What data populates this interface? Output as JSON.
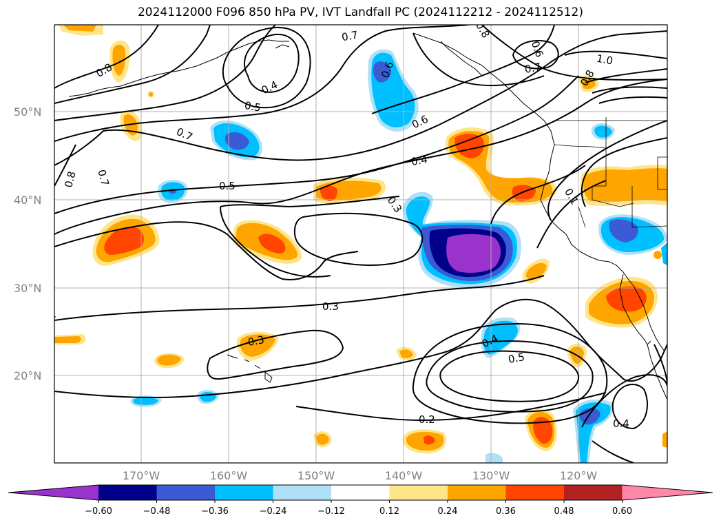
{
  "title": "2024112000 F096 850 hPa PV, IVT Landfall PC (2024112212 - 2024112512)",
  "lat_labels": [
    "50°N",
    "40°N",
    "30°N",
    "20°N"
  ],
  "lon_labels": [
    "170°W",
    "160°W",
    "150°W",
    "140°W",
    "130°W",
    "120°W"
  ],
  "contour_labels": [
    "0.8",
    "0.7",
    "0.4",
    "0.5",
    "0.6",
    "0.8",
    "0.6",
    "0.7",
    "1.0",
    "0.8",
    "0.7",
    "0.7",
    "0.8",
    "0.5",
    "0.4",
    "0.6",
    "0.3",
    "0.3",
    "0.3",
    "0.4",
    "0.5",
    "0.2",
    "0.4",
    "0.1"
  ],
  "colorbar": {
    "ticks": [
      "−0.60",
      "−0.48",
      "−0.36",
      "−0.24",
      "−0.12",
      "0.12",
      "0.24",
      "0.36",
      "0.48",
      "0.60"
    ],
    "colors": [
      "#9933cc",
      "#00008b",
      "#3a5ad6",
      "#00bfff",
      "#aee0f7",
      "#ffffff",
      "#ffe58a",
      "#ffa500",
      "#ff4500",
      "#b22222",
      "#ff88aa"
    ]
  },
  "fill_colors": {
    "neg_light": "#aee0f7",
    "neg_mid": "#00bfff",
    "neg_strong": "#3a5ad6",
    "neg_darker": "#00008b",
    "neg_darkest": "#9933cc",
    "pos_light": "#ffe58a",
    "pos_mid": "#ffa500",
    "pos_strong": "#ff4500",
    "pos_darker": "#b22222"
  },
  "grid_color": "#b0b0b0"
}
